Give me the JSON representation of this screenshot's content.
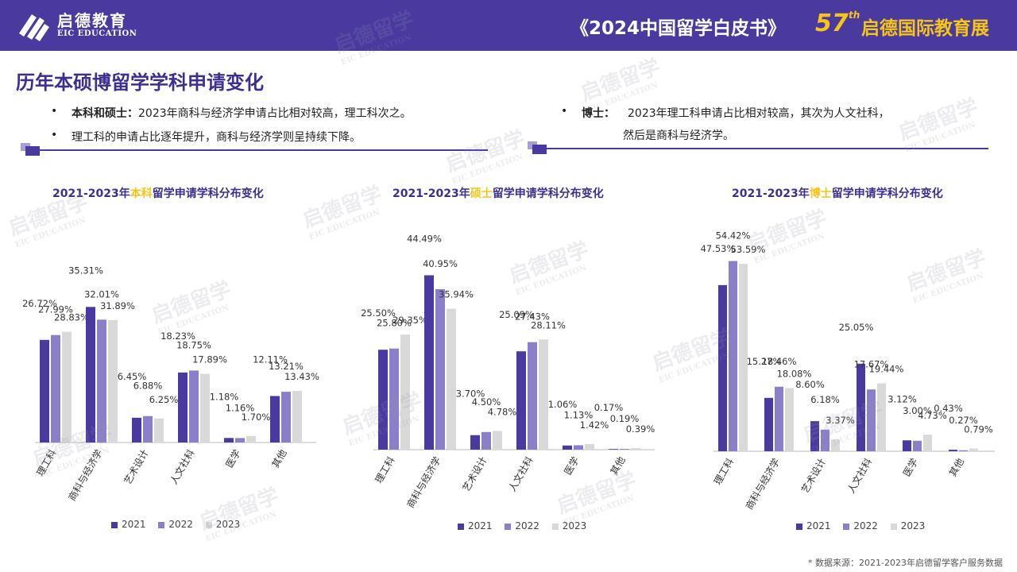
{
  "header": {
    "logo_cn": "启德教育",
    "logo_en": "EIC EDUCATION",
    "book_title": "《2024中国留学白皮书》",
    "expo_number": "57",
    "expo_sup": "th",
    "expo_text": "启德国际教育展"
  },
  "section_title": "历年本硕博留学学科申请变化",
  "bullets": {
    "b1_bold": "本科和硕士：",
    "b1_text": "2023年商科与经济学申请占比相对较高，理工科次之。",
    "b2_text": "理工科的申请占比逐年提升，商科与经济学则呈持续下降。",
    "b3_bold": "博士：",
    "b3_text": "2023年理工科申请占比相对较高，其次为人文社科，",
    "b3_text2": "然后是商科与经济学。"
  },
  "watermark": {
    "cn": "启德留学",
    "en": "EIC EDUCATION"
  },
  "colors": {
    "2021": "#4a3aa0",
    "2022": "#8b7fc9",
    "2023": "#d9d9d9",
    "accent": "#f5c518"
  },
  "chart_titles": [
    {
      "pre": "2021-2023年",
      "hl": "本科",
      "post": "留学申请学科分布变化"
    },
    {
      "pre": "2021-2023年",
      "hl": "硕士",
      "post": "留学申请学科分布变化"
    },
    {
      "pre": "2021-2023年",
      "hl": "博士",
      "post": "留学申请学科分布变化"
    }
  ],
  "legend": [
    "2021",
    "2022",
    "2023"
  ],
  "source": "* 数据来源：2021-2023年启德留学客户服务数据",
  "chart_data": [
    {
      "type": "bar",
      "title": "2021-2023年本科留学申请学科分布变化",
      "categories": [
        "理工科",
        "商科与经济学",
        "艺术设计",
        "人文社科",
        "医学",
        "其他"
      ],
      "series": [
        {
          "name": "2021",
          "values": [
            26.72,
            35.31,
            6.45,
            18.23,
            1.18,
            12.11
          ]
        },
        {
          "name": "2022",
          "values": [
            27.99,
            32.01,
            6.88,
            18.75,
            1.16,
            13.21
          ]
        },
        {
          "name": "2023",
          "values": [
            28.83,
            31.89,
            6.25,
            17.89,
            1.7,
            13.43
          ]
        }
      ],
      "labels": [
        [
          "26.72%",
          "35.31%",
          "6.45%",
          "18.23%",
          "1.18%",
          "12.11%"
        ],
        [
          "27.99%",
          "32.01%",
          "6.88%",
          "18.75%",
          "1.16%",
          "13.21%"
        ],
        [
          "28.83%",
          "31.89%",
          "6.25%",
          "17.89%",
          "1.70%",
          "13.43%"
        ]
      ],
      "unit": "%",
      "legend": "bottom"
    },
    {
      "type": "bar",
      "title": "2021-2023年硕士留学申请学科分布变化",
      "categories": [
        "理工科",
        "商科与经济学",
        "艺术设计",
        "人文社科",
        "医学",
        "其他"
      ],
      "series": [
        {
          "name": "2021",
          "values": [
            25.5,
            44.49,
            3.7,
            25.09,
            1.06,
            0.17
          ]
        },
        {
          "name": "2022",
          "values": [
            25.8,
            40.95,
            4.5,
            27.43,
            1.13,
            0.19
          ]
        },
        {
          "name": "2023",
          "values": [
            29.35,
            35.94,
            4.78,
            28.11,
            1.42,
            0.39
          ]
        }
      ],
      "labels": [
        [
          "25.50%",
          "44.49%",
          "3.70%",
          "25.09%",
          "1.06%",
          "0.17%"
        ],
        [
          "25.80%",
          "40.95%",
          "4.50%",
          "27.43%",
          "1.13%",
          "0.19%"
        ],
        [
          "29.35%",
          "35.94%",
          "4.78%",
          "28.11%",
          "1.42%",
          "0.39%"
        ]
      ],
      "unit": "%",
      "legend": "bottom"
    },
    {
      "type": "bar",
      "title": "2021-2023年博士留学申请学科分布变化",
      "categories": [
        "理工科",
        "商科与经济学",
        "艺术设计",
        "人文社科",
        "医学",
        "其他"
      ],
      "series": [
        {
          "name": "2021",
          "values": [
            47.53,
            15.27,
            8.6,
            25.05,
            3.12,
            0.43
          ]
        },
        {
          "name": "2022",
          "values": [
            54.42,
            18.46,
            6.18,
            17.67,
            3.0,
            0.27
          ]
        },
        {
          "name": "2023",
          "values": [
            53.59,
            18.08,
            3.37,
            19.44,
            4.73,
            0.79
          ]
        }
      ],
      "labels": [
        [
          "47.53%",
          "15.27%",
          "8.60%",
          "25.05%",
          "3.12%",
          "0.43%"
        ],
        [
          "54.42%",
          "18.46%",
          "6.18%",
          "17.67%",
          "3.00%",
          "0.27%"
        ],
        [
          "53.59%",
          "18.08%",
          "3.37%",
          "19.44%",
          "4.73%",
          "0.79%"
        ]
      ],
      "unit": "%",
      "legend": "bottom"
    }
  ]
}
